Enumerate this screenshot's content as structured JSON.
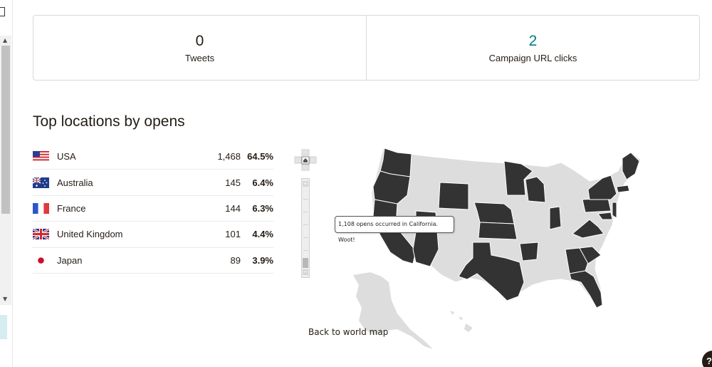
{
  "stats": [
    {
      "value": "0",
      "label": "Tweets",
      "style": "plain"
    },
    {
      "value": "2",
      "label": "Campaign URL clicks",
      "style": "link"
    }
  ],
  "locations": {
    "title": "Top locations by opens",
    "rows": [
      {
        "country": "USA",
        "flag": "us-flag-icon",
        "count": "1,468",
        "percent": "64.5%"
      },
      {
        "country": "Australia",
        "flag": "australia-flag-icon",
        "count": "145",
        "percent": "6.4%"
      },
      {
        "country": "France",
        "flag": "france-flag-icon",
        "count": "144",
        "percent": "6.3%"
      },
      {
        "country": "United Kingdom",
        "flag": "uk-flag-icon",
        "count": "101",
        "percent": "4.4%"
      },
      {
        "country": "Japan",
        "flag": "japan-flag-icon",
        "count": "89",
        "percent": "3.9%"
      }
    ]
  },
  "map": {
    "tooltip": "1,108 opens occurred in California. Woot!",
    "back_link": "Back to world map",
    "colors": {
      "active": "#333333",
      "inactive": "#dddddd",
      "link": "#007c89"
    }
  },
  "help": {
    "label": "?"
  }
}
